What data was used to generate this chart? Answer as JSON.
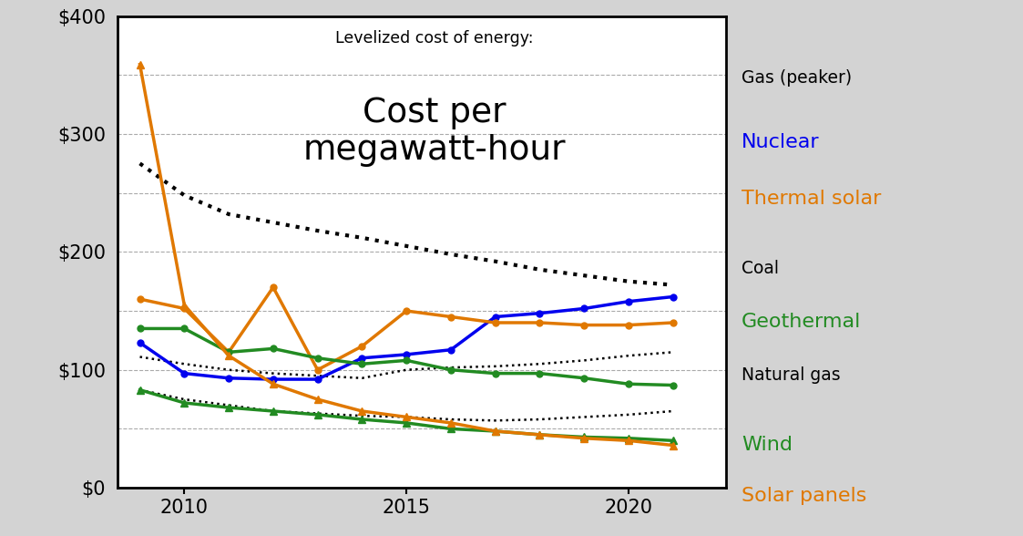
{
  "title_sub": "Levelized cost of energy:",
  "title_main": "Cost per\nmegawatt-hour",
  "background_color": "#d3d3d3",
  "plot_bg": "#ffffff",
  "ylim": [
    0,
    400
  ],
  "yticks": [
    0,
    50,
    100,
    150,
    200,
    250,
    300,
    350,
    400
  ],
  "ytick_labels": [
    "$0",
    "",
    "$100",
    "",
    "$200",
    "",
    "$300",
    "",
    "$400"
  ],
  "xlim": [
    2008.5,
    2022.2
  ],
  "series": {
    "gas_peaker": {
      "label": "Gas (peaker)",
      "color": "black",
      "linestyle": "dotted",
      "linewidth": 3.0,
      "marker": null,
      "x": [
        2009,
        2010,
        2011,
        2012,
        2013,
        2014,
        2015,
        2016,
        2017,
        2018,
        2019,
        2020,
        2021
      ],
      "y": [
        275,
        248,
        232,
        225,
        218,
        212,
        205,
        198,
        192,
        185,
        180,
        175,
        172
      ]
    },
    "coal": {
      "label": "Coal",
      "color": "black",
      "linestyle": "dotted",
      "linewidth": 1.8,
      "marker": null,
      "x": [
        2009,
        2010,
        2011,
        2012,
        2013,
        2014,
        2015,
        2016,
        2017,
        2018,
        2019,
        2020,
        2021
      ],
      "y": [
        111,
        105,
        100,
        97,
        95,
        93,
        100,
        102,
        103,
        105,
        108,
        112,
        115
      ]
    },
    "natural_gas": {
      "label": "Natural gas",
      "color": "black",
      "linestyle": "dotted",
      "linewidth": 1.8,
      "marker": null,
      "x": [
        2009,
        2010,
        2011,
        2012,
        2013,
        2014,
        2015,
        2016,
        2017,
        2018,
        2019,
        2020,
        2021
      ],
      "y": [
        83,
        75,
        70,
        65,
        63,
        61,
        60,
        58,
        57,
        58,
        60,
        62,
        65
      ]
    },
    "nuclear": {
      "label": "Nuclear",
      "color": "#0000ee",
      "linestyle": "solid",
      "linewidth": 2.5,
      "marker": "o",
      "markersize": 5,
      "x": [
        2009,
        2010,
        2011,
        2012,
        2013,
        2014,
        2015,
        2016,
        2017,
        2018,
        2019,
        2020,
        2021
      ],
      "y": [
        123,
        97,
        93,
        92,
        92,
        110,
        113,
        117,
        145,
        148,
        152,
        158,
        162
      ]
    },
    "thermal_solar": {
      "label": "Thermal solar",
      "color": "#e07800",
      "linestyle": "solid",
      "linewidth": 2.5,
      "marker": "o",
      "markersize": 5,
      "x": [
        2009,
        2010,
        2011,
        2012,
        2013,
        2014,
        2015,
        2016,
        2017,
        2018,
        2019,
        2020,
        2021
      ],
      "y": [
        160,
        152,
        115,
        170,
        100,
        120,
        150,
        145,
        140,
        140,
        138,
        138,
        140
      ]
    },
    "geothermal": {
      "label": "Geothermal",
      "color": "#228b22",
      "linestyle": "solid",
      "linewidth": 2.5,
      "marker": "o",
      "markersize": 5,
      "x": [
        2009,
        2010,
        2011,
        2012,
        2013,
        2014,
        2015,
        2016,
        2017,
        2018,
        2019,
        2020,
        2021
      ],
      "y": [
        135,
        135,
        115,
        118,
        110,
        105,
        108,
        100,
        97,
        97,
        93,
        88,
        87
      ]
    },
    "wind": {
      "label": "Wind",
      "color": "#228b22",
      "linestyle": "solid",
      "linewidth": 2.5,
      "marker": "^",
      "markersize": 6,
      "x": [
        2009,
        2010,
        2011,
        2012,
        2013,
        2014,
        2015,
        2016,
        2017,
        2018,
        2019,
        2020,
        2021
      ],
      "y": [
        83,
        72,
        68,
        65,
        62,
        58,
        55,
        50,
        48,
        45,
        43,
        42,
        40
      ]
    },
    "solar_panels": {
      "label": "Solar panels",
      "color": "#e07800",
      "linestyle": "solid",
      "linewidth": 2.5,
      "marker": "^",
      "markersize": 6,
      "x": [
        2009,
        2010,
        2011,
        2012,
        2013,
        2014,
        2015,
        2016,
        2017,
        2018,
        2019,
        2020,
        2021
      ],
      "y": [
        359,
        155,
        112,
        88,
        75,
        65,
        60,
        55,
        48,
        45,
        42,
        40,
        36
      ]
    }
  },
  "legend_items": [
    {
      "label": "Gas (peaker)",
      "color": "#000000",
      "fontsize": 13.5
    },
    {
      "label": "Nuclear",
      "color": "#0000ee",
      "fontsize": 16
    },
    {
      "label": "Thermal solar",
      "color": "#e07800",
      "fontsize": 16
    },
    {
      "label": "Coal",
      "color": "#000000",
      "fontsize": 13.5
    },
    {
      "label": "Geothermal",
      "color": "#228b22",
      "fontsize": 16
    },
    {
      "label": "Natural gas",
      "color": "#000000",
      "fontsize": 13.5
    },
    {
      "label": "Wind",
      "color": "#228b22",
      "fontsize": 16
    },
    {
      "label": "Solar panels",
      "color": "#e07800",
      "fontsize": 16
    }
  ]
}
